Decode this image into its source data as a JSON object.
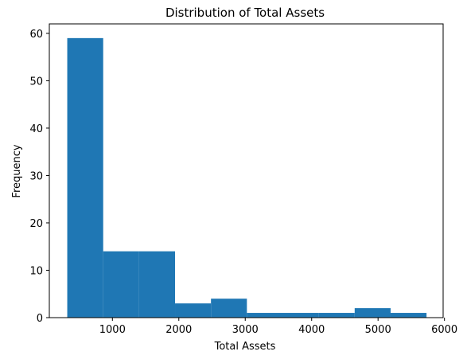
{
  "chart_data": {
    "type": "bar",
    "title": "Distribution of Total Assets",
    "xlabel": "Total Assets",
    "ylabel": "Frequency",
    "xlim": [
      50,
      5980
    ],
    "ylim": [
      0,
      62
    ],
    "bin_edges": [
      320,
      861,
      1402,
      1943,
      2484,
      3025,
      3566,
      4107,
      4648,
      5189,
      5730
    ],
    "values": [
      59,
      14,
      14,
      3,
      4,
      1,
      1,
      1,
      2,
      1
    ],
    "x_ticks": [
      1000,
      2000,
      3000,
      4000,
      5000,
      6000
    ],
    "y_ticks": [
      0,
      10,
      20,
      30,
      40,
      50,
      60
    ],
    "bar_color": "#1f77b4",
    "grid": false
  }
}
